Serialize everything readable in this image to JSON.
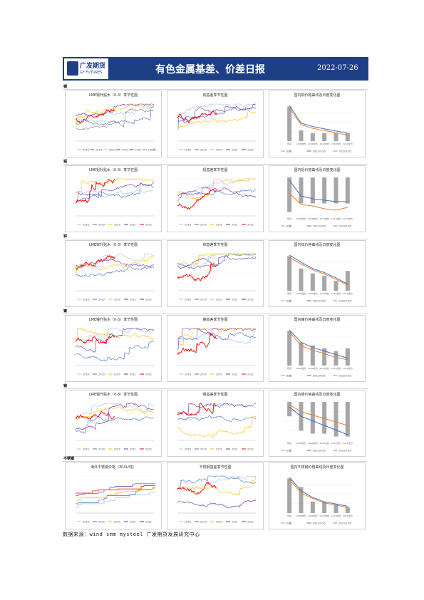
{
  "header": {
    "logo_cn": "广发期货",
    "logo_en": "GF FUTURES",
    "title": "有色金属基差、价差日报",
    "date": "2022-07-26",
    "bg_color": "#1d3f86"
  },
  "footer": {
    "source": "数据来源：wind  smm  mysteel  广发期货发展研究中心"
  },
  "colors": {
    "s2018": "#a9c4e6",
    "s2019": "#4472c4",
    "s2020": "#ffc000",
    "s2021": "#7030a0",
    "s2022": "#ff0000",
    "bar": "#a6a6a6",
    "basis_blue": "#4472c4",
    "basis_orange": "#ed7d31"
  },
  "sections": [
    {
      "label": "铜",
      "panels": [
        {
          "kind": "season",
          "title": "LME铜升贴水（0-3）季节性图",
          "legend": [
            "2018",
            "2019",
            "2020",
            "2021",
            "2022",
            "LME铜"
          ]
        },
        {
          "kind": "season",
          "title": "铜基差季节性图",
          "legend": [
            "2018",
            "2019",
            "2020",
            "2021",
            "2022"
          ]
        },
        {
          "kind": "curve",
          "title": "国内铜价格曲线及日度变化图",
          "chart_data": {
            "type": "bar",
            "categories": [
              "现货",
              "2208合约",
              "2209合约",
              "2210合约",
              "2211合约",
              "2212合约"
            ],
            "values": [
              13,
              4,
              3,
              3,
              3,
              3
            ],
            "lines": [
              [
                60740,
                59300,
                59020,
                58840,
                58660,
                58480
              ],
              [
                60540,
                59170,
                58870,
                58700,
                58520,
                58300
              ]
            ],
            "legend": [
              "价差",
              "2022/7/26",
              "2022/7/25"
            ]
          }
        }
      ]
    },
    {
      "label": "铝",
      "panels": [
        {
          "kind": "season",
          "title": "LME铝升贴水（0-3）季节性图",
          "legend": [
            "2018",
            "2019",
            "2020",
            "2021",
            "2022"
          ]
        },
        {
          "kind": "season",
          "title": "铝基差季节性图",
          "legend": [
            "2018",
            "2019",
            "2020",
            "2021",
            "2022"
          ]
        },
        {
          "kind": "curve",
          "title": "国内铝价格曲线及日度变化图",
          "chart_data": {
            "type": "bar",
            "categories": [
              "现货",
              "2208合约",
              "2209合约",
              "2210合约",
              "2211合约",
              "2212合约"
            ],
            "values": [
              -4,
              -3,
              -3,
              -3,
              -3,
              -3
            ],
            "lines": [
              [
                18010,
                17900,
                17880,
                17870,
                17860,
                17860
              ],
              [
                17920,
                17840,
                17830,
                17810,
                17800,
                17820
              ]
            ],
            "legend": [
              "价差",
              "2022/7/26",
              "2022/7/25"
            ]
          }
        }
      ]
    },
    {
      "label": "锌",
      "panels": [
        {
          "kind": "season",
          "title": "LME锌升贴水（0-3）季节性图",
          "legend": [
            "2018",
            "2019",
            "2020",
            "2021",
            "2022"
          ]
        },
        {
          "kind": "season",
          "title": "锌基差季节性图",
          "legend": [
            "2018",
            "2019",
            "2020",
            "2021",
            "2022"
          ]
        },
        {
          "kind": "curve",
          "title": "国内锌价格曲线及日度变化图",
          "chart_data": {
            "type": "bar",
            "categories": [
              "现货",
              "2208合约",
              "2209合约",
              "2210合约",
              "2211合约",
              "2212合约"
            ],
            "values": [
              14,
              9,
              7,
              6,
              4,
              8
            ],
            "lines": [
              [
                24300,
                23950,
                23650,
                23450,
                23200,
                22900
              ],
              [
                24200,
                23870,
                23590,
                23380,
                23130,
                22850
              ]
            ],
            "legend": [
              "价差",
              "2022/7/26",
              "2022/7/25"
            ]
          }
        }
      ]
    },
    {
      "label": "镍",
      "panels": [
        {
          "kind": "season",
          "title": "LME镍升贴水（0-3）季节性图",
          "legend": [
            "2018",
            "2019",
            "2020",
            "2021",
            "2022"
          ]
        },
        {
          "kind": "season",
          "title": "镍基差季节性图",
          "legend": [
            "2018",
            "2019",
            "2020",
            "2021",
            "2022"
          ]
        },
        {
          "kind": "curve",
          "title": "国内镍价格曲线及日度变化图",
          "chart_data": {
            "type": "bar",
            "categories": [
              "现货",
              "2208合约",
              "2209合约",
              "2210合约",
              "2211合约",
              "2212合约"
            ],
            "values": [
              12,
              8,
              7,
              6,
              5,
              6
            ],
            "lines": [
              [
                172000,
                165000,
                162000,
                160000,
                158000,
                156000
              ],
              [
                171000,
                163000,
                160500,
                158500,
                156500,
                155000
              ]
            ],
            "legend": [
              "价差",
              "2022/7/26",
              "2022/7/25"
            ]
          }
        }
      ]
    },
    {
      "label": "锡",
      "panels": [
        {
          "kind": "season",
          "title": "LME锡升贴水（0-3）季节性图",
          "legend": [
            "2018",
            "2019",
            "2020",
            "2021",
            "2022"
          ]
        },
        {
          "kind": "season",
          "title": "锡基差季节性图",
          "legend": [
            "2018",
            "2019",
            "2020",
            "2021",
            "2022"
          ]
        },
        {
          "kind": "curve",
          "title": "国内锡价格曲线及日度变化图",
          "chart_data": {
            "type": "bar",
            "categories": [
              "现货",
              "2208合约",
              "2209合约",
              "2210合约",
              "2211合约",
              "2212合约"
            ],
            "values": [
              -5,
              -10,
              -11,
              -11,
              -12,
              -12
            ],
            "lines": [
              [
                197000,
                193000,
                191000,
                189000,
                187000,
                185000
              ],
              [
                198000,
                195000,
                193500,
                192000,
                190500,
                189000
              ]
            ],
            "legend": [
              "价差",
              "2022/7/26",
              "2022/7/25"
            ]
          }
        }
      ]
    },
    {
      "label": "不锈钢",
      "panels": [
        {
          "kind": "stairs",
          "title": "海外不锈钢价格（304L/吨）",
          "legend": [
            "2018",
            "2019",
            "2020",
            "2021",
            "2022"
          ]
        },
        {
          "kind": "season",
          "title": "不锈钢基差季节性图",
          "legend": [
            "2018",
            "2019",
            "2020",
            "2021",
            "2022"
          ]
        },
        {
          "kind": "curve",
          "title": "国内不锈钢价格曲线及日度变化图",
          "chart_data": {
            "type": "bar",
            "categories": [
              "现货",
              "2208合约",
              "2209合约",
              "2210合约",
              "2211合约",
              "2212合约"
            ],
            "values": [
              12,
              9,
              4,
              4,
              3,
              2
            ],
            "lines": [
              [
                16800,
                16200,
                15900,
                15700,
                15600,
                15500
              ],
              [
                16700,
                16100,
                15850,
                15650,
                15550,
                15450
              ]
            ],
            "legend": [
              "价差",
              "2022/7/26",
              "2022/7/25"
            ]
          }
        }
      ]
    }
  ]
}
